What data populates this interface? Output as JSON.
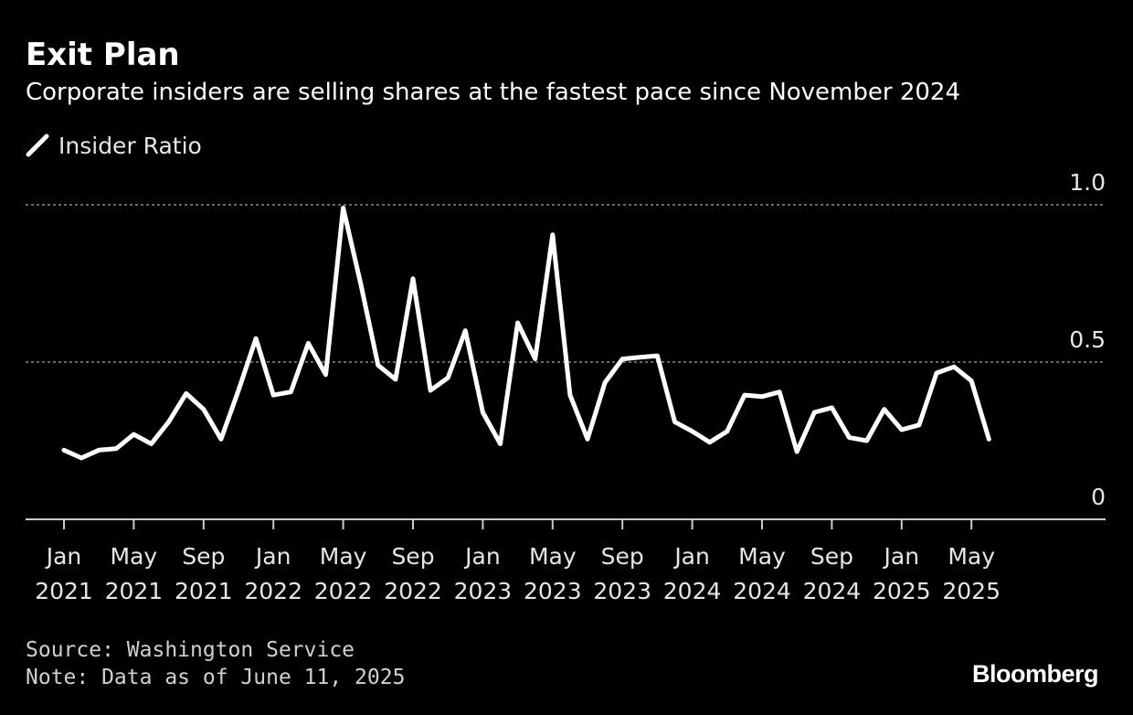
{
  "chart_data": {
    "type": "line",
    "title": "Exit Plan",
    "subtitle": "Corporate insiders are selling shares at the fastest pace since November 2024",
    "legend": [
      "Insider Ratio"
    ],
    "ylim": [
      0,
      1.0
    ],
    "yticks": [
      {
        "value": 1.0,
        "label": "1.0"
      },
      {
        "value": 0.5,
        "label": "0.5"
      },
      {
        "value": 0,
        "label": "0"
      }
    ],
    "xticks": [
      {
        "index": 0,
        "line1": "Jan",
        "line2": "2021"
      },
      {
        "index": 4,
        "line1": "May",
        "line2": "2021"
      },
      {
        "index": 8,
        "line1": "Sep",
        "line2": "2021"
      },
      {
        "index": 12,
        "line1": "Jan",
        "line2": "2022"
      },
      {
        "index": 16,
        "line1": "May",
        "line2": "2022"
      },
      {
        "index": 20,
        "line1": "Sep",
        "line2": "2022"
      },
      {
        "index": 24,
        "line1": "Jan",
        "line2": "2023"
      },
      {
        "index": 28,
        "line1": "May",
        "line2": "2023"
      },
      {
        "index": 32,
        "line1": "Sep",
        "line2": "2023"
      },
      {
        "index": 36,
        "line1": "Jan",
        "line2": "2024"
      },
      {
        "index": 40,
        "line1": "May",
        "line2": "2024"
      },
      {
        "index": 44,
        "line1": "Sep",
        "line2": "2024"
      },
      {
        "index": 48,
        "line1": "Jan",
        "line2": "2025"
      },
      {
        "index": 52,
        "line1": "May",
        "line2": "2025"
      }
    ],
    "series": [
      {
        "name": "Insider Ratio",
        "color": "#ffffff",
        "values": [
          0.22,
          0.195,
          0.22,
          0.225,
          0.27,
          0.24,
          0.31,
          0.4,
          0.35,
          0.255,
          0.41,
          0.575,
          0.395,
          0.405,
          0.56,
          0.46,
          0.99,
          0.75,
          0.49,
          0.445,
          0.765,
          0.41,
          0.45,
          0.6,
          0.34,
          0.24,
          0.625,
          0.51,
          0.905,
          0.395,
          0.255,
          0.435,
          0.51,
          0.515,
          0.52,
          0.31,
          0.28,
          0.245,
          0.28,
          0.395,
          0.39,
          0.405,
          0.215,
          0.34,
          0.355,
          0.26,
          0.25,
          0.35,
          0.285,
          0.3,
          0.465,
          0.485,
          0.44,
          0.255
        ]
      }
    ]
  },
  "footer": {
    "source": "Source: Washington Service",
    "note": "Note: Data as of June 11, 2025",
    "brand": "Bloomberg"
  },
  "colors": {
    "background": "#000000",
    "line": "#ffffff",
    "grid": "#8a8a8a",
    "axis": "#cccccc",
    "tick_label": "#e6e6e6"
  }
}
